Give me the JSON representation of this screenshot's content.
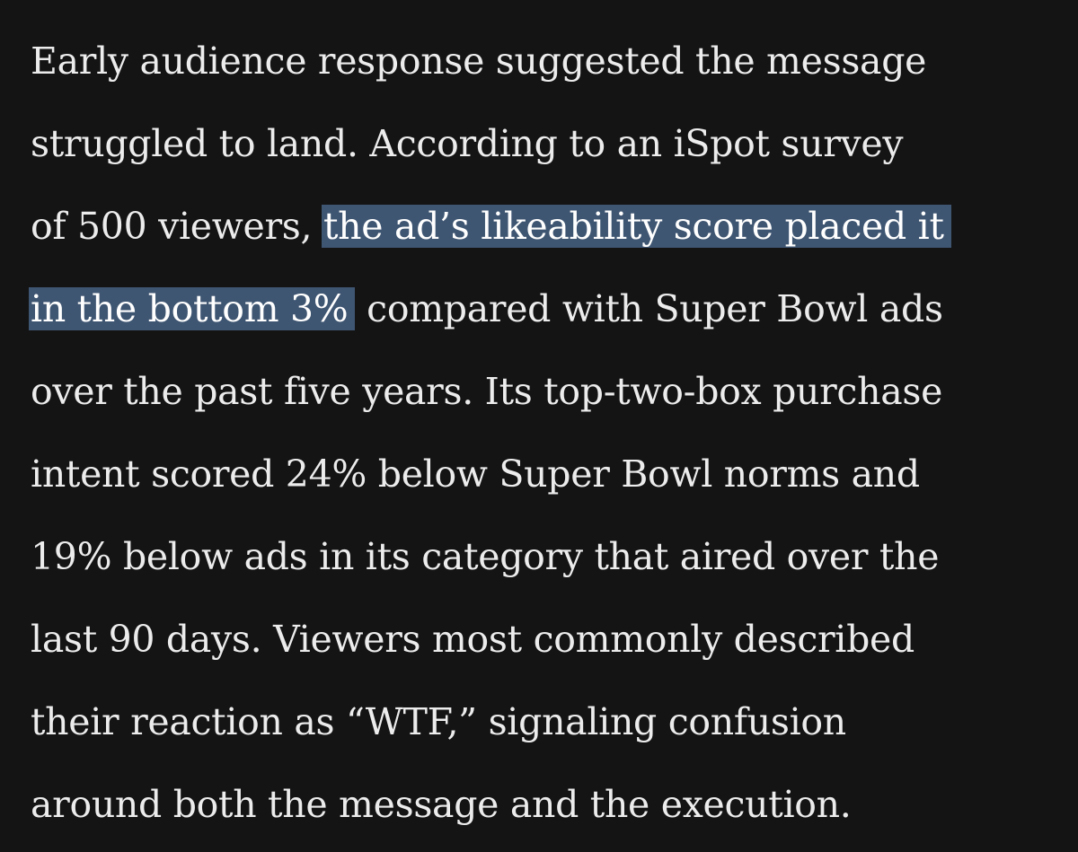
{
  "article": {
    "lines": [
      {
        "text": "Early audience response suggested the message"
      },
      {
        "text": "struggled to land. According to an iSpot survey"
      },
      {
        "before": "of 500 viewers, ",
        "highlight": "the ad’s likeability score placed it"
      },
      {
        "highlight": "in the bottom 3%",
        "after": " compared with Super Bowl ads"
      },
      {
        "text": "over the past five years. Its top-two-box purchase"
      },
      {
        "text": "intent scored 24% below Super Bowl norms and"
      },
      {
        "text": "19% below ads in its category that aired over the"
      },
      {
        "text": "last 90 days. Viewers most commonly described"
      },
      {
        "text": "their reaction as “WTF,” signaling confusion"
      },
      {
        "text": "around both the message and the execution."
      }
    ]
  },
  "colors": {
    "background": "#141414",
    "text": "#ececec",
    "highlight": "#3f5672"
  }
}
